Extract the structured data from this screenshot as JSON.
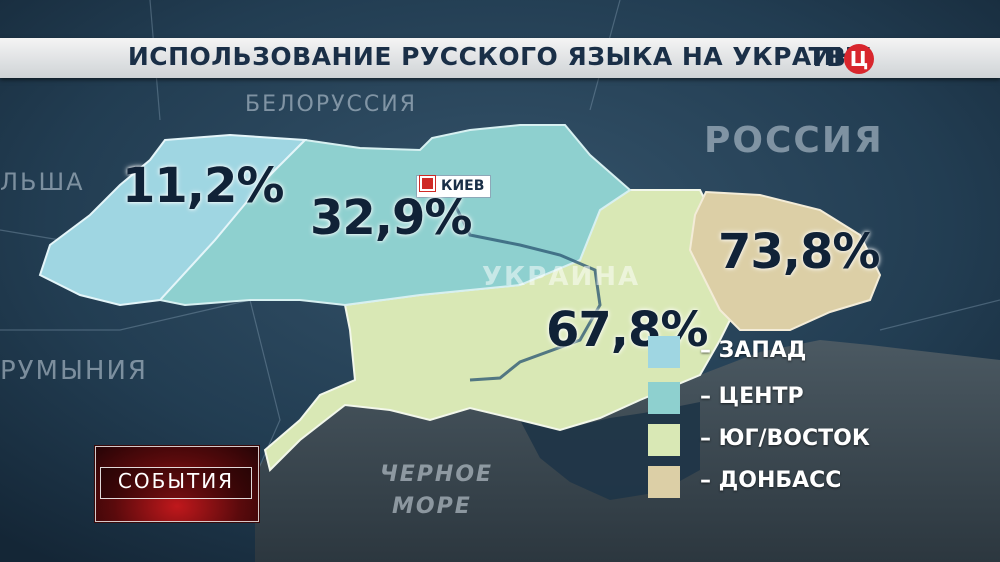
{
  "title": "ИСПОЛЬЗОВАНИЕ РУССКОГО ЯЗЫКА НА УКРАИНЕ",
  "channel_logo": {
    "prefix": "ТВ",
    "circle": "Ц"
  },
  "map_labels": {
    "belarus": "БЕЛОРУССИЯ",
    "russia": "РОССИЯ",
    "poland": "ЛЬША",
    "romania": "РУМЫНИЯ",
    "ukraine": "УКРАИНА",
    "sea_line1": "ЧЕРНОЕ",
    "sea_line2": "МОРЕ",
    "capital": "КИЕВ"
  },
  "regions": [
    {
      "id": "west",
      "value": "11,2%",
      "color": "#9fd6e2"
    },
    {
      "id": "center",
      "value": "32,9%",
      "color": "#8ed0cf"
    },
    {
      "id": "south_east",
      "value": "67,8%",
      "color": "#d9e8b5"
    },
    {
      "id": "donbass",
      "value": "73,8%",
      "color": "#dccfa6"
    }
  ],
  "legend": [
    {
      "label": "– ЗАПАД",
      "color": "#9fd6e2"
    },
    {
      "label": "– ЦЕНТР",
      "color": "#8ed0cf"
    },
    {
      "label": "– ЮГ/ВОСТОК",
      "color": "#d9e8b5"
    },
    {
      "label": "– ДОНБАСС",
      "color": "#dccfa6"
    }
  ],
  "program_badge": "СОБЫТИЯ",
  "colors": {
    "sea": "#3c4a55",
    "land_dark": "#223a4d",
    "title_text": "#1a2f47",
    "brand_red": "#d8262d"
  }
}
